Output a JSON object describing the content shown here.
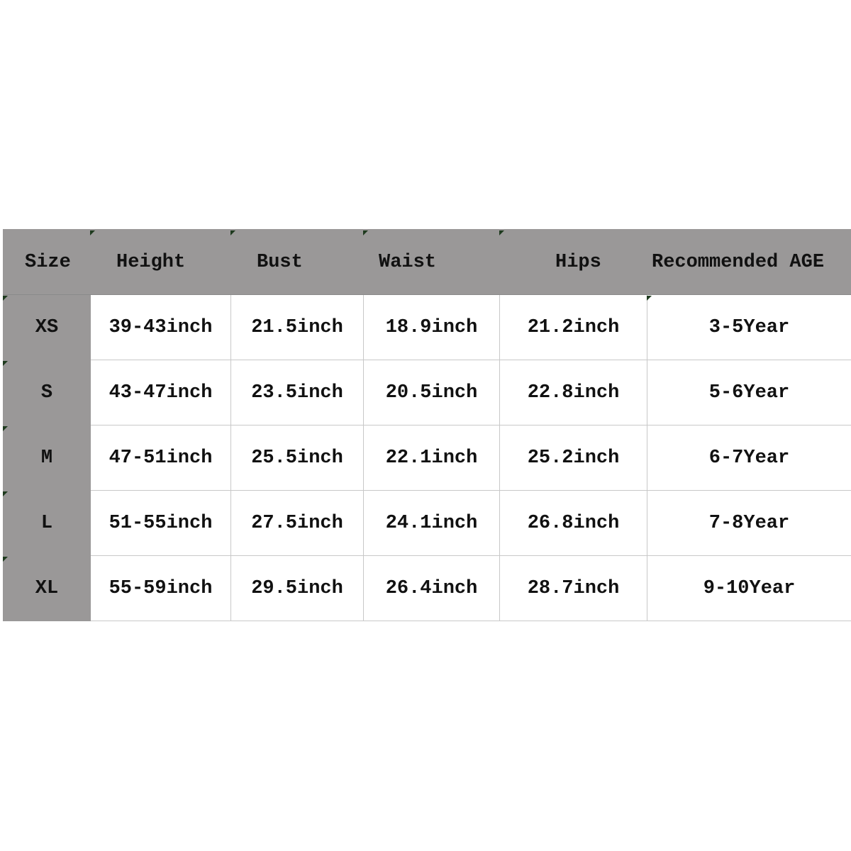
{
  "headers": [
    "Size",
    "Height",
    "Bust",
    "Waist",
    "Hips",
    "Recommended AGE"
  ],
  "rows": [
    [
      "XS",
      "39-43inch",
      "21.5inch",
      "18.9inch",
      "21.2inch",
      "3-5Year"
    ],
    [
      "S",
      "43-47inch",
      "23.5inch",
      "20.5inch",
      "22.8inch",
      "5-6Year"
    ],
    [
      "M",
      "47-51inch",
      "25.5inch",
      "22.1inch",
      "25.2inch",
      "6-7Year"
    ],
    [
      "L",
      "51-55inch",
      "27.5inch",
      "24.1inch",
      "26.8inch",
      "7-8Year"
    ],
    [
      "XL",
      "55-59inch",
      "29.5inch",
      "26.4inch",
      "28.7inch",
      "9-10Year"
    ]
  ],
  "colors": {
    "header_bg": "#9a9898",
    "cell_bg": "#ffffff",
    "text": "#111111"
  }
}
